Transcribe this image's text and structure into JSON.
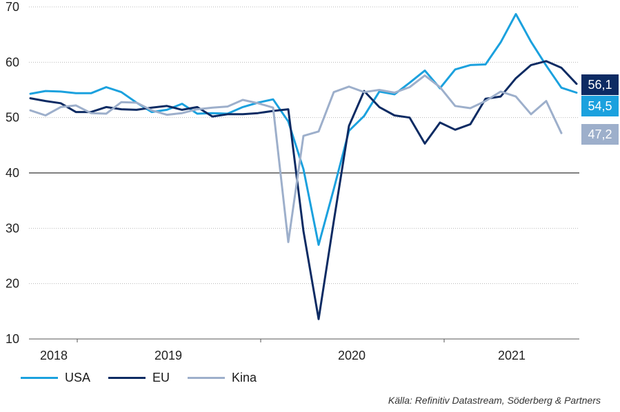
{
  "chart_data": {
    "type": "line",
    "yticks": [
      "10",
      "20",
      "30",
      "40",
      "50",
      "60",
      "70"
    ],
    "ylim": [
      10,
      70
    ],
    "reference_line": 40,
    "x_labels": [
      "2018",
      "2019",
      "2020",
      "2021"
    ],
    "series": [
      {
        "name": "USA",
        "color": "#1BA1DE",
        "end_label": "54,5",
        "values": [
          54.3,
          54.8,
          54.7,
          54.4,
          54.4,
          55.5,
          54.6,
          52.7,
          51.0,
          51.4,
          52.5,
          50.7,
          50.8,
          50.7,
          51.9,
          52.7,
          53.3,
          49.3,
          40.7,
          27.0,
          37.1,
          47.6,
          50.3,
          54.7,
          54.2,
          56.3,
          58.5,
          55.3,
          58.7,
          59.5,
          59.6,
          63.6,
          68.7,
          63.7,
          59.4,
          55.4,
          54.5
        ]
      },
      {
        "name": "EU",
        "color": "#0D2B63",
        "end_label": "56,1",
        "values": [
          53.5,
          53.0,
          52.6,
          51.0,
          51.0,
          51.9,
          51.5,
          51.4,
          51.8,
          52.1,
          51.4,
          51.9,
          50.2,
          50.6,
          50.6,
          50.8,
          51.2,
          51.5,
          29.5,
          13.6,
          31.3,
          48.5,
          54.8,
          51.9,
          50.4,
          50.0,
          45.3,
          49.1,
          47.8,
          48.8,
          53.4,
          53.8,
          57.1,
          59.5,
          60.2,
          59.0,
          56.1
        ]
      },
      {
        "name": "Kina",
        "color": "#9DAFCB",
        "end_label": "47,2",
        "values": [
          51.3,
          50.4,
          51.9,
          52.2,
          50.8,
          50.7,
          52.8,
          52.7,
          51.3,
          50.5,
          50.8,
          51.5,
          51.8,
          52.0,
          53.2,
          52.6,
          51.8,
          27.5,
          46.7,
          47.5,
          54.6,
          55.6,
          54.6,
          55.0,
          54.5,
          55.5,
          57.6,
          55.5,
          52.1,
          51.7,
          53.0,
          54.7,
          53.8,
          50.6,
          53.0,
          47.2
        ]
      }
    ]
  },
  "legend": {
    "usa": "USA",
    "eu": "EU",
    "kina": "Kina"
  },
  "source": "Källa: Refinitiv Datastream, Söderberg & Partners"
}
